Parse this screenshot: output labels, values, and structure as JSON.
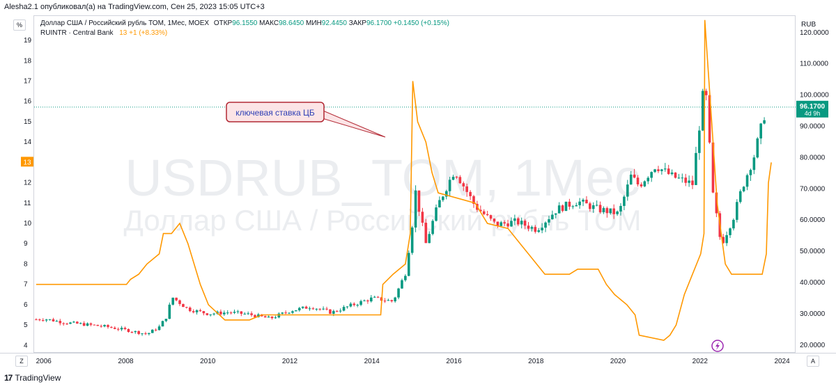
{
  "caption": "Alesha2.1 опубликовал(а) на TradingView.com, Сен 25, 2023 15:05 UTC+3",
  "footer_brand": "TradingView",
  "left_unit_button": "%",
  "right_unit_label": "RUB",
  "z_button": "Z",
  "a_button": "A",
  "legend": {
    "line1_name": "Доллар США / Российский рубль ТОМ, 1Мес, MOEX",
    "open_label": "ОТКР",
    "open": "96.1550",
    "high_label": "МАКС",
    "high": "98.6450",
    "low_label": "МИН",
    "low": "92.4450",
    "close_label": "ЗАКР",
    "close": "96.1700",
    "change": "+0.1450 (+0.15%)",
    "line2_name": "RUINTR · Central Bank",
    "rate_value": "13",
    "rate_change": "+1 (+8.33%)"
  },
  "watermark": {
    "line1": "USDRUB_TOM, 1Мес",
    "line2": "Доллар США / Российский рубль ТОМ"
  },
  "price_badge": {
    "price": "96.1700",
    "countdown": "4d 9h"
  },
  "rate_badge": "13",
  "annotation": "ключевая ставка ЦБ",
  "colors": {
    "up": "#089981",
    "down": "#f23645",
    "rate": "#ff9800",
    "price_line": "#089981",
    "annotation_border": "#b22833",
    "annotation_bg": "#fce4e6",
    "annotation_text": "#2c3fb5"
  },
  "icons": {
    "flash": "flash-icon",
    "logo": "tradingview-logo-icon"
  },
  "chart_data": [
    {
      "type": "candlestick",
      "title": "Доллар США / Российский рубль ТОМ, 1Мес, MOEX",
      "x_axis_ticks": [
        "2006",
        "2008",
        "2010",
        "2012",
        "2014",
        "2016",
        "2018",
        "2020",
        "2022",
        "2024"
      ],
      "y_axis_ticks": [
        "20.0000",
        "30.0000",
        "40.0000",
        "50.0000",
        "60.0000",
        "70.0000",
        "80.0000",
        "90.0000",
        "100.0000",
        "110.0000",
        "120.0000"
      ],
      "ylim": [
        17.3,
        125.3
      ],
      "xlim": [
        2005.75,
        2024.33
      ],
      "grid": false,
      "series": [
        {
          "name": "USDRUB_TOM",
          "points": [
            {
              "t": 2005.8,
              "close": 28.2
            },
            {
              "t": 2006.0,
              "close": 28.4
            },
            {
              "t": 2006.5,
              "close": 27.2
            },
            {
              "t": 2007.0,
              "close": 26.6
            },
            {
              "t": 2007.5,
              "close": 25.9
            },
            {
              "t": 2008.0,
              "close": 24.8
            },
            {
              "t": 2008.5,
              "close": 23.5
            },
            {
              "t": 2008.8,
              "close": 25.8
            },
            {
              "t": 2009.0,
              "close": 29.5
            },
            {
              "t": 2009.1,
              "close": 35.5
            },
            {
              "t": 2009.5,
              "close": 31.5
            },
            {
              "t": 2010.0,
              "close": 30.0
            },
            {
              "t": 2010.5,
              "close": 30.5
            },
            {
              "t": 2011.0,
              "close": 29.8
            },
            {
              "t": 2011.5,
              "close": 28.5
            },
            {
              "t": 2012.0,
              "close": 31.0
            },
            {
              "t": 2012.5,
              "close": 32.3
            },
            {
              "t": 2013.0,
              "close": 30.4
            },
            {
              "t": 2013.5,
              "close": 32.8
            },
            {
              "t": 2014.0,
              "close": 35.0
            },
            {
              "t": 2014.5,
              "close": 34.0
            },
            {
              "t": 2014.8,
              "close": 43.0
            },
            {
              "t": 2014.95,
              "close": 56.5
            },
            {
              "t": 2015.05,
              "close": 69.0
            },
            {
              "t": 2015.3,
              "close": 52.5
            },
            {
              "t": 2015.6,
              "close": 65.0
            },
            {
              "t": 2016.0,
              "close": 76.0
            },
            {
              "t": 2016.5,
              "close": 64.5
            },
            {
              "t": 2017.0,
              "close": 58.5
            },
            {
              "t": 2017.5,
              "close": 59.5
            },
            {
              "t": 2018.0,
              "close": 57.0
            },
            {
              "t": 2018.5,
              "close": 63.5
            },
            {
              "t": 2019.0,
              "close": 66.0
            },
            {
              "t": 2019.5,
              "close": 63.5
            },
            {
              "t": 2020.0,
              "close": 62.0
            },
            {
              "t": 2020.3,
              "close": 74.0
            },
            {
              "t": 2020.5,
              "close": 71.0
            },
            {
              "t": 2020.9,
              "close": 77.5
            },
            {
              "t": 2021.3,
              "close": 74.0
            },
            {
              "t": 2021.8,
              "close": 71.5
            },
            {
              "t": 2022.1,
              "close": 105.0
            },
            {
              "t": 2022.3,
              "close": 68.0
            },
            {
              "t": 2022.5,
              "close": 52.0
            },
            {
              "t": 2022.8,
              "close": 61.0
            },
            {
              "t": 2023.0,
              "close": 70.0
            },
            {
              "t": 2023.3,
              "close": 80.5
            },
            {
              "t": 2023.6,
              "close": 96.17
            }
          ]
        }
      ]
    },
    {
      "type": "line",
      "title": "RUINTR · Central Bank",
      "y_axis_ticks": [
        "4",
        "5",
        "6",
        "7",
        "8",
        "9",
        "10",
        "11",
        "12",
        "13",
        "14",
        "15",
        "16",
        "17",
        "18",
        "19"
      ],
      "ylim": [
        3.6,
        20.2
      ],
      "series": [
        {
          "name": "RUINTR",
          "points": [
            {
              "t": 2005.8,
              "rate": 7.0
            },
            {
              "t": 2008.0,
              "rate": 7.0
            },
            {
              "t": 2008.1,
              "rate": 7.25
            },
            {
              "t": 2008.3,
              "rate": 7.5
            },
            {
              "t": 2008.5,
              "rate": 8.0
            },
            {
              "t": 2008.8,
              "rate": 8.5
            },
            {
              "t": 2008.9,
              "rate": 9.5
            },
            {
              "t": 2009.1,
              "rate": 9.5
            },
            {
              "t": 2009.3,
              "rate": 10.0
            },
            {
              "t": 2009.5,
              "rate": 9.0
            },
            {
              "t": 2009.8,
              "rate": 7.0
            },
            {
              "t": 2010.0,
              "rate": 6.0
            },
            {
              "t": 2010.4,
              "rate": 5.25
            },
            {
              "t": 2011.0,
              "rate": 5.25
            },
            {
              "t": 2011.3,
              "rate": 5.5
            },
            {
              "t": 2012.2,
              "rate": 5.5
            },
            {
              "t": 2012.4,
              "rate": 5.5
            },
            {
              "t": 2012.7,
              "rate": 5.5
            },
            {
              "t": 2012.8,
              "rate": 5.5
            },
            {
              "t": 2013.0,
              "rate": 5.5
            },
            {
              "t": 2013.8,
              "rate": 5.5
            },
            {
              "t": 2014.2,
              "rate": 5.5
            },
            {
              "t": 2014.25,
              "rate": 7.0
            },
            {
              "t": 2014.5,
              "rate": 7.5
            },
            {
              "t": 2014.8,
              "rate": 8.0
            },
            {
              "t": 2014.92,
              "rate": 9.5
            },
            {
              "t": 2014.98,
              "rate": 17.0
            },
            {
              "t": 2015.1,
              "rate": 15.0
            },
            {
              "t": 2015.3,
              "rate": 14.0
            },
            {
              "t": 2015.45,
              "rate": 12.5
            },
            {
              "t": 2015.6,
              "rate": 11.5
            },
            {
              "t": 2016.5,
              "rate": 11.0
            },
            {
              "t": 2016.8,
              "rate": 10.0
            },
            {
              "t": 2017.3,
              "rate": 9.75
            },
            {
              "t": 2017.6,
              "rate": 9.0
            },
            {
              "t": 2017.9,
              "rate": 8.25
            },
            {
              "t": 2018.2,
              "rate": 7.5
            },
            {
              "t": 2018.8,
              "rate": 7.5
            },
            {
              "t": 2019.0,
              "rate": 7.75
            },
            {
              "t": 2019.5,
              "rate": 7.75
            },
            {
              "t": 2019.7,
              "rate": 7.0
            },
            {
              "t": 2019.9,
              "rate": 6.5
            },
            {
              "t": 2020.2,
              "rate": 6.0
            },
            {
              "t": 2020.4,
              "rate": 5.5
            },
            {
              "t": 2020.5,
              "rate": 4.5
            },
            {
              "t": 2021.1,
              "rate": 4.25
            },
            {
              "t": 2021.25,
              "rate": 4.5
            },
            {
              "t": 2021.4,
              "rate": 5.0
            },
            {
              "t": 2021.6,
              "rate": 6.5
            },
            {
              "t": 2021.8,
              "rate": 7.5
            },
            {
              "t": 2022.0,
              "rate": 8.5
            },
            {
              "t": 2022.08,
              "rate": 9.5
            },
            {
              "t": 2022.1,
              "rate": 20.0
            },
            {
              "t": 2022.3,
              "rate": 14.0
            },
            {
              "t": 2022.4,
              "rate": 11.0
            },
            {
              "t": 2022.5,
              "rate": 9.5
            },
            {
              "t": 2022.6,
              "rate": 8.0
            },
            {
              "t": 2022.75,
              "rate": 7.5
            },
            {
              "t": 2023.5,
              "rate": 7.5
            },
            {
              "t": 2023.6,
              "rate": 8.5
            },
            {
              "t": 2023.65,
              "rate": 12.0
            },
            {
              "t": 2023.72,
              "rate": 13.0
            }
          ]
        }
      ]
    }
  ]
}
